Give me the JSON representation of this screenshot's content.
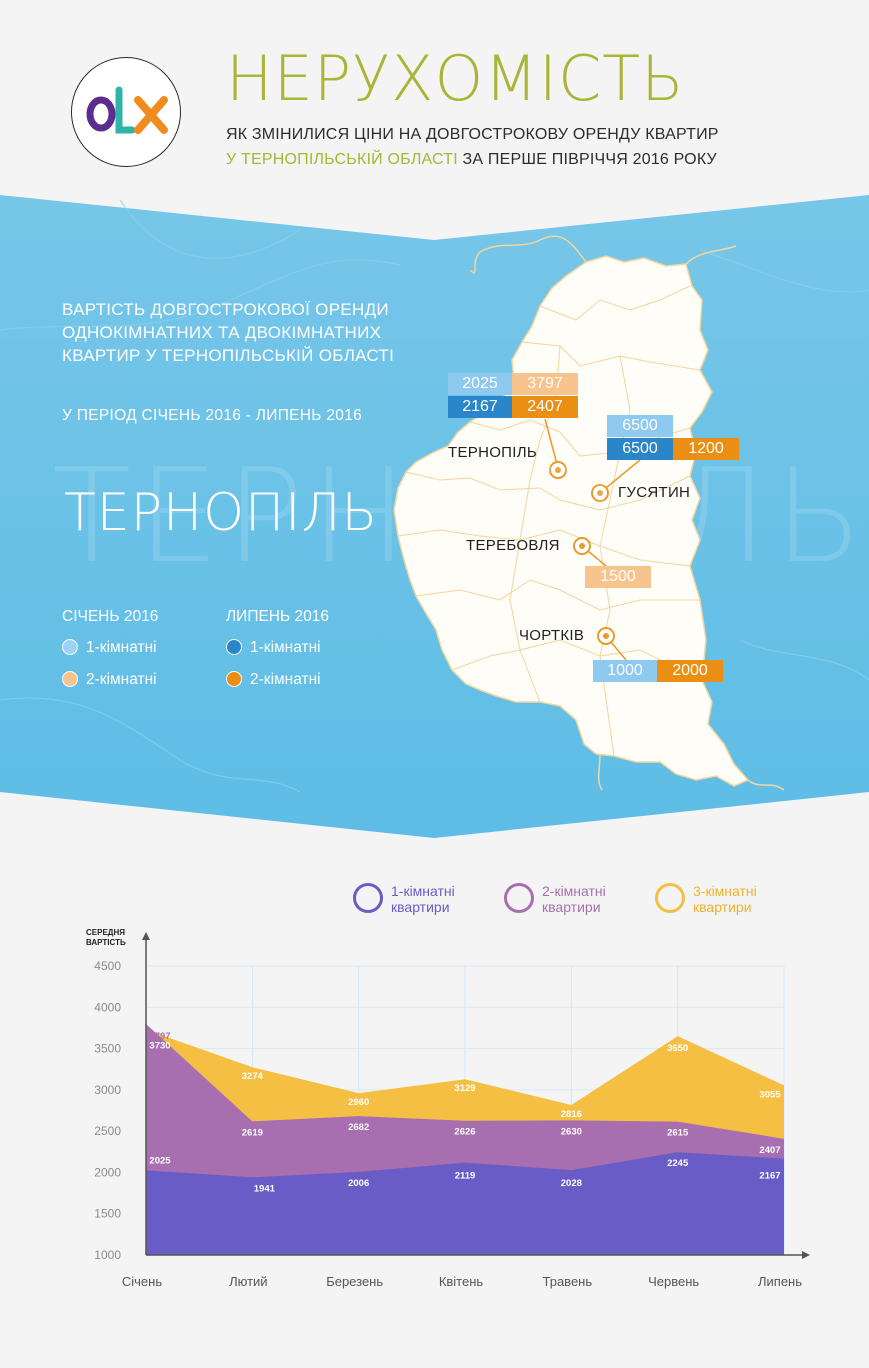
{
  "header": {
    "title": "НЕРУХОМІСТЬ",
    "subtitle_line1": "ЯК ЗМІНИЛИСЯ ЦІНИ НА ДОВГОСТРОКОВУ ОРЕНДУ КВАРТИР",
    "subtitle_highlight": "У ТЕРНОПІЛЬСЬКІЙ ОБЛАСТІ",
    "subtitle_line2_rest": " ЗА ПЕРШЕ ПІВРІЧЧЯ 2016 РОКУ",
    "logo": {
      "o": "O",
      "l": "L",
      "x": "X"
    }
  },
  "colors": {
    "accent_green": "#a8b535",
    "sky_blue": "#6cc3e6",
    "light_blue": "#8ec9f0",
    "dark_blue": "#2a86c9",
    "light_orange": "#f7c48e",
    "dark_orange": "#ea8f14",
    "series_1": "#6a5cc6",
    "series_2": "#a86fb0",
    "series_3": "#f5bf44"
  },
  "section": {
    "heading": [
      "ВАРТІСТЬ ДОВГОСТРОКОВОЇ ОРЕНДИ",
      "ОДНОКІМНАТНИХ ТА ДВОКІМНАТНИХ",
      "КВАРТИР У ТЕРНОПІЛЬСЬКІЙ ОБЛАСТІ"
    ],
    "period": "У ПЕРІОД СІЧЕНЬ 2016 - ЛИПЕНЬ 2016",
    "city": "ТЕРНОПІЛЬ",
    "legend": {
      "jan_title": "СІЧЕНЬ 2016",
      "jul_title": "ЛИПЕНЬ 2016",
      "one_room": "1-кімнатні",
      "two_room": "2-кімнатні"
    }
  },
  "map": {
    "cities": [
      {
        "name": "ТЕРНОПІЛЬ",
        "jan_1": "2025",
        "jan_2": "3797",
        "jul_1": "2167",
        "jul_2": "2407"
      },
      {
        "name": "ГУСЯТИН",
        "jan_1": "6500",
        "jul_1": "6500",
        "jul_2": "1200"
      },
      {
        "name": "ТЕРЕБОВЛЯ",
        "jan_2": "1500"
      },
      {
        "name": "ЧОРТКІВ",
        "jan_1": "1000",
        "jul_2": "2000"
      }
    ]
  },
  "chart_data": {
    "type": "area",
    "ylabel": "СЕРЕДНЯ ВАРТІСТЬ",
    "xlabel": "",
    "ylim": [
      1000,
      4500
    ],
    "yticks": [
      1000,
      1500,
      2000,
      2500,
      3000,
      3500,
      4000,
      4500
    ],
    "grid": true,
    "legend_position": "top",
    "categories": [
      "Січень",
      "Лютий",
      "Березень",
      "Квітень",
      "Травень",
      "Червень",
      "Липень"
    ],
    "series": [
      {
        "name": "1-кімнатні квартири",
        "values": [
          2025,
          1941,
          2006,
          2119,
          2028,
          2245,
          2167
        ]
      },
      {
        "name": "2-кімнатні квартири",
        "values": [
          3797,
          2619,
          2682,
          2626,
          2630,
          2615,
          2407
        ]
      },
      {
        "name": "3-кімнатні квартири",
        "values": [
          3730,
          3274,
          2960,
          3129,
          2816,
          3650,
          3055
        ]
      }
    ]
  }
}
